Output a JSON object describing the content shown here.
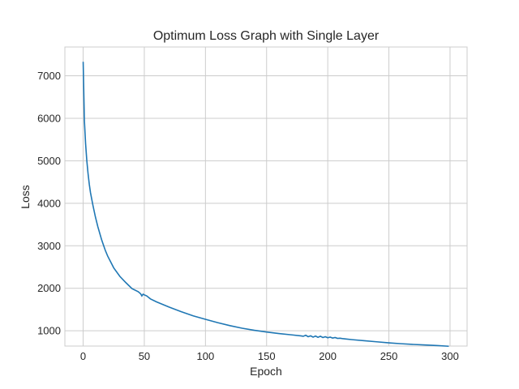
{
  "chart_data": {
    "type": "line",
    "title": "Optimum Loss Graph with Single Layer",
    "xlabel": "Epoch",
    "ylabel": "Loss",
    "xlim": [
      -14.95,
      313.95
    ],
    "ylim": [
      640,
      7678
    ],
    "grid": true,
    "legend": "none",
    "line_color": "#1f77b4",
    "xticks": [
      0,
      50,
      100,
      150,
      200,
      250,
      300
    ],
    "yticks": [
      1000,
      2000,
      3000,
      4000,
      5000,
      6000,
      7000
    ],
    "series": [
      {
        "x": [
          0,
          1,
          2,
          3,
          4,
          5,
          6,
          8,
          10,
          12,
          15,
          18,
          20,
          25,
          30,
          35,
          40,
          45,
          47,
          48,
          49,
          50,
          52,
          55,
          60,
          70,
          80,
          90,
          100,
          110,
          120,
          130,
          140,
          150,
          160,
          170,
          178,
          180,
          182,
          184,
          186,
          188,
          190,
          192,
          194,
          196,
          198,
          200,
          202,
          204,
          206,
          208,
          210,
          212,
          215,
          220,
          230,
          240,
          250,
          260,
          270,
          280,
          290,
          299
        ],
        "y": [
          7330,
          5950,
          5400,
          5000,
          4700,
          4450,
          4250,
          3950,
          3680,
          3450,
          3150,
          2900,
          2760,
          2480,
          2280,
          2130,
          1990,
          1920,
          1870,
          1820,
          1860,
          1845,
          1820,
          1750,
          1680,
          1560,
          1450,
          1350,
          1270,
          1190,
          1120,
          1060,
          1010,
          970,
          935,
          905,
          880,
          870,
          895,
          860,
          880,
          850,
          875,
          845,
          870,
          840,
          860,
          835,
          850,
          828,
          840,
          820,
          825,
          815,
          805,
          790,
          765,
          740,
          715,
          695,
          678,
          665,
          650,
          635
        ]
      }
    ]
  }
}
